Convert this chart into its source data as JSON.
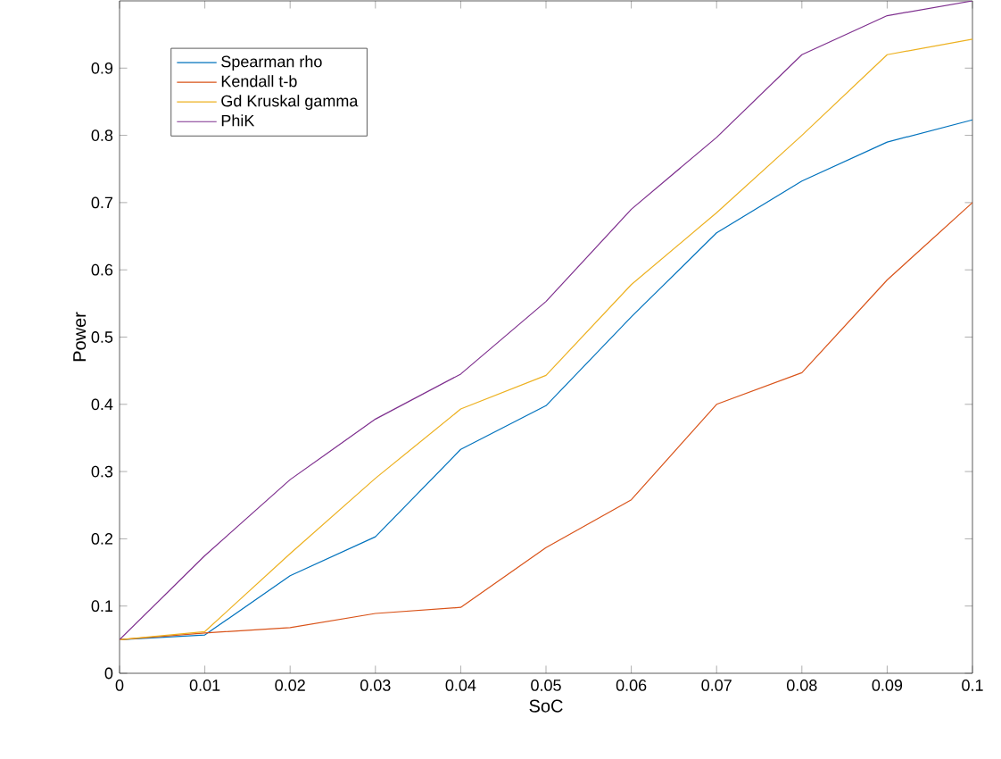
{
  "chart_data": {
    "type": "line",
    "xlabel": "SoC",
    "ylabel": "Power",
    "x": [
      0,
      0.01,
      0.02,
      0.03,
      0.04,
      0.05,
      0.06,
      0.07,
      0.08,
      0.09,
      0.1
    ],
    "series": [
      {
        "name": "Spearman rho",
        "color": "#0072bd",
        "values": [
          0.05,
          0.057,
          0.145,
          0.203,
          0.333,
          0.398,
          0.53,
          0.655,
          0.732,
          0.79,
          0.823
        ]
      },
      {
        "name": "Kendall t-b",
        "color": "#d95319",
        "values": [
          0.05,
          0.06,
          0.068,
          0.089,
          0.098,
          0.187,
          0.258,
          0.4,
          0.447,
          0.585,
          0.7
        ]
      },
      {
        "name": "Gd Kruskal gamma",
        "color": "#edb120",
        "values": [
          0.05,
          0.062,
          0.178,
          0.29,
          0.393,
          0.443,
          0.578,
          0.685,
          0.8,
          0.92,
          0.943
        ]
      },
      {
        "name": "PhiK",
        "color": "#7e2f8e",
        "values": [
          0.05,
          0.175,
          0.288,
          0.378,
          0.445,
          0.553,
          0.69,
          0.797,
          0.92,
          0.978,
          1.0
        ]
      }
    ],
    "xlim": [
      0,
      0.1
    ],
    "ylim": [
      0,
      1
    ],
    "xticks": [
      0,
      0.01,
      0.02,
      0.03,
      0.04,
      0.05,
      0.06,
      0.07,
      0.08,
      0.09,
      0.1
    ],
    "yticks": [
      0,
      0.1,
      0.2,
      0.3,
      0.4,
      0.5,
      0.6,
      0.7,
      0.8,
      0.9
    ],
    "legend": "top left",
    "grid": false,
    "marker": "none",
    "line_style": "solid"
  }
}
